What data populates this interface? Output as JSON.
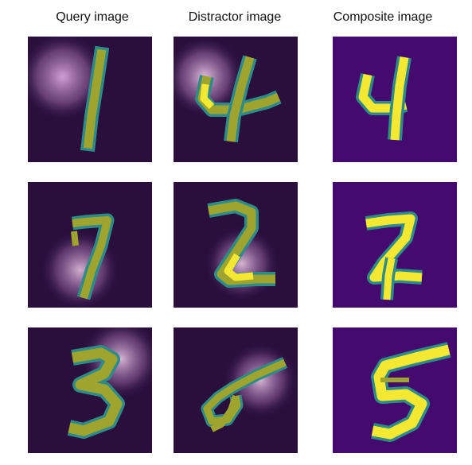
{
  "columns": [
    {
      "id": "query",
      "label": "Query image"
    },
    {
      "id": "distractor",
      "label": "Distractor image"
    },
    {
      "id": "composite",
      "label": "Composite image"
    }
  ],
  "rows": [
    {
      "query": {
        "digit": "1",
        "background": "#2a0f3d",
        "glow": "upper-left"
      },
      "distractor": {
        "digit": "4",
        "background": "#2a0f3d",
        "glow": "upper-left"
      },
      "composite": {
        "digit": "4",
        "background": "#440a6e"
      }
    },
    {
      "query": {
        "digit": "7",
        "background": "#2a0f3d",
        "glow": "lower-left"
      },
      "distractor": {
        "digit": "2",
        "background": "#2a0f3d",
        "glow": "lower-center"
      },
      "composite": {
        "digit": "2",
        "background": "#440a6e"
      }
    },
    {
      "query": {
        "digit": "3",
        "background": "#2a0f3d",
        "glow": "upper-right"
      },
      "distractor": {
        "digit": "5",
        "background": "#2a0f3d",
        "glow": "right"
      },
      "composite": {
        "digit": "5",
        "background": "#440a6e"
      }
    }
  ],
  "colors": {
    "stroke_bright": "#f4e832",
    "stroke_mid": "#9ea42e",
    "stroke_edge": "#2d8b8a",
    "glow": "#d9a6dc"
  }
}
